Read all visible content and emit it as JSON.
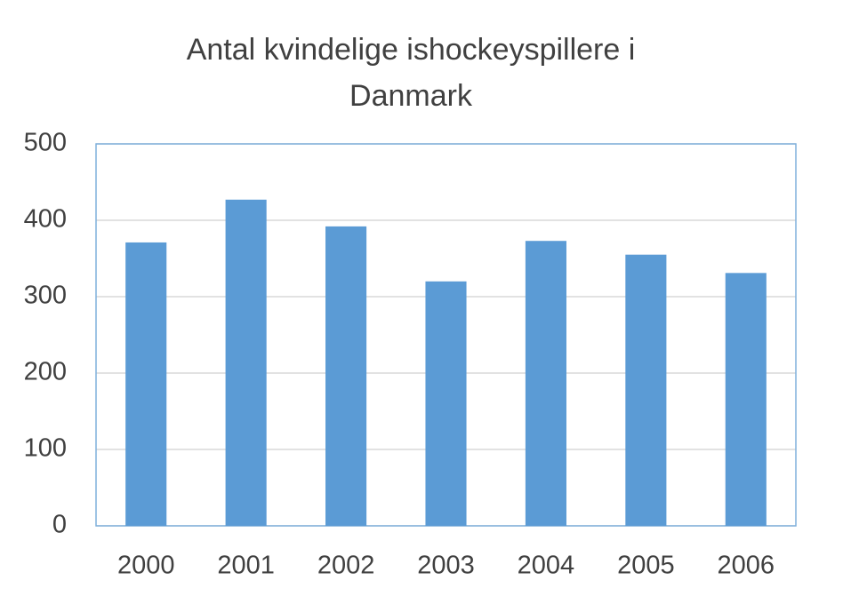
{
  "chart_data": {
    "type": "bar",
    "title": "Antal kvindelige ishockeyspillere i Danmark",
    "categories": [
      "2000",
      "2001",
      "2002",
      "2003",
      "2004",
      "2005",
      "2006"
    ],
    "values": [
      371,
      427,
      392,
      320,
      373,
      355,
      331
    ],
    "color": "#5b9bd5",
    "ylim": [
      0,
      500
    ],
    "yticks": [
      0,
      100,
      200,
      300,
      400,
      500
    ],
    "grid": true
  }
}
